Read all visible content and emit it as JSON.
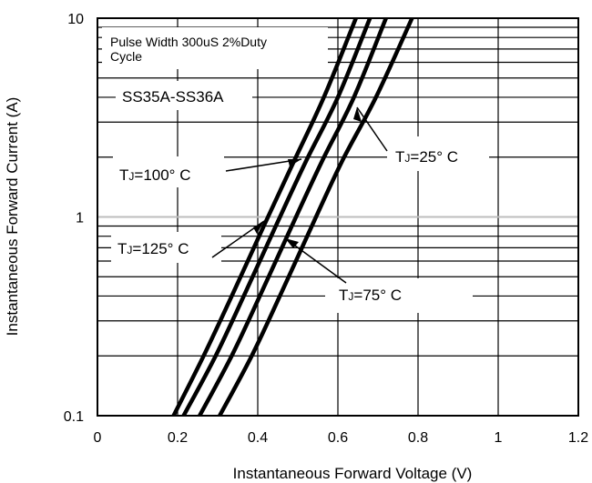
{
  "chart_data": {
    "type": "line",
    "title": "",
    "xlabel": "Instantaneous Forward Voltage (V)",
    "ylabel": "Instantaneous Forward Current (A)",
    "x_scale": "linear",
    "y_scale": "log",
    "xlim": [
      0,
      1.2
    ],
    "ylim": [
      0.1,
      10
    ],
    "x_ticks": [
      "0",
      "0.2",
      "0.4",
      "0.6",
      "0.8",
      "1",
      "1.2"
    ],
    "x_tick_values": [
      0,
      0.2,
      0.4,
      0.6,
      0.8,
      1.0,
      1.2
    ],
    "y_ticks": [
      "0.1",
      "1",
      "10"
    ],
    "y_tick_values": [
      0.1,
      1,
      10
    ],
    "grid": true,
    "series": [
      {
        "name": "TJ=125° C",
        "x": [
          0.19,
          0.265,
          0.34,
          0.415,
          0.49,
          0.565,
          0.645
        ],
        "y": [
          0.1,
          0.2,
          0.42,
          0.9,
          1.9,
          4.0,
          10
        ]
      },
      {
        "name": "TJ=100° C",
        "x": [
          0.215,
          0.295,
          0.37,
          0.445,
          0.52,
          0.6,
          0.68
        ],
        "y": [
          0.1,
          0.2,
          0.42,
          0.9,
          1.9,
          4.0,
          10
        ]
      },
      {
        "name": "TJ=75° C",
        "x": [
          0.255,
          0.335,
          0.41,
          0.485,
          0.56,
          0.64,
          0.72
        ],
        "y": [
          0.1,
          0.2,
          0.42,
          0.9,
          1.9,
          4.0,
          10
        ]
      },
      {
        "name": "TJ=25° C",
        "x": [
          0.305,
          0.385,
          0.46,
          0.535,
          0.61,
          0.695,
          0.785
        ],
        "y": [
          0.1,
          0.2,
          0.42,
          0.9,
          1.9,
          4.0,
          10
        ]
      }
    ],
    "annotations": {
      "condition_line1": "Pulse Width 300uS 2%Duty",
      "condition_line2": "Cycle",
      "part_number": "SS35A-SS36A",
      "t125": {
        "tj": "T",
        "sub": "J",
        "val": "=125° C"
      },
      "t100": {
        "tj": "T",
        "sub": "J",
        "val": "=100° C"
      },
      "t75": {
        "tj": "T",
        "sub": "J",
        "val": "=75° C"
      },
      "t25": {
        "tj": "T",
        "sub": "J",
        "val": "=25° C"
      }
    },
    "colors": {
      "curves": "#000000",
      "grid": "#000000",
      "unity_line": "#bdbdbd"
    }
  }
}
